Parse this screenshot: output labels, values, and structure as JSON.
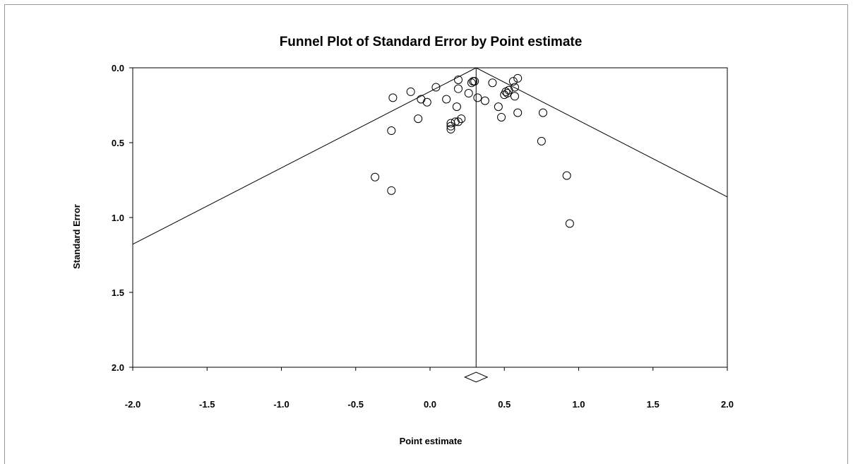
{
  "chart_data": {
    "type": "scatter",
    "title": "Funnel Plot of Standard Error by Point estimate",
    "xlabel": "Point estimate",
    "ylabel": "Standard Error",
    "xlim": [
      -2.0,
      2.0
    ],
    "ylim": [
      0.0,
      2.0
    ],
    "y_inverted": true,
    "x_ticks": [
      "-2.0",
      "-1.5",
      "-1.0",
      "-0.5",
      "0.0",
      "0.5",
      "1.0",
      "1.5",
      "2.0"
    ],
    "y_ticks": [
      "0.0",
      "0.5",
      "1.0",
      "1.5",
      "2.0"
    ],
    "grid": false,
    "combined_estimate": 0.31,
    "funnel_limits": "95% (estimate ± 1.96 × SE)",
    "points": [
      {
        "x": 0.29,
        "y": 0.09
      },
      {
        "x": 0.3,
        "y": 0.09
      },
      {
        "x": 0.28,
        "y": 0.1
      },
      {
        "x": 0.19,
        "y": 0.08
      },
      {
        "x": 0.42,
        "y": 0.1
      },
      {
        "x": 0.56,
        "y": 0.09
      },
      {
        "x": 0.59,
        "y": 0.07
      },
      {
        "x": 0.57,
        "y": 0.13
      },
      {
        "x": 0.04,
        "y": 0.13
      },
      {
        "x": 0.19,
        "y": 0.14
      },
      {
        "x": -0.13,
        "y": 0.16
      },
      {
        "x": 0.26,
        "y": 0.17
      },
      {
        "x": 0.51,
        "y": 0.16
      },
      {
        "x": 0.53,
        "y": 0.15
      },
      {
        "x": 0.52,
        "y": 0.17
      },
      {
        "x": 0.5,
        "y": 0.18
      },
      {
        "x": 0.57,
        "y": 0.19
      },
      {
        "x": -0.25,
        "y": 0.2
      },
      {
        "x": 0.32,
        "y": 0.2
      },
      {
        "x": -0.06,
        "y": 0.21
      },
      {
        "x": 0.11,
        "y": 0.21
      },
      {
        "x": -0.02,
        "y": 0.23
      },
      {
        "x": 0.37,
        "y": 0.22
      },
      {
        "x": 0.18,
        "y": 0.26
      },
      {
        "x": 0.46,
        "y": 0.26
      },
      {
        "x": 0.59,
        "y": 0.3
      },
      {
        "x": 0.76,
        "y": 0.3
      },
      {
        "x": 0.48,
        "y": 0.33
      },
      {
        "x": -0.08,
        "y": 0.34
      },
      {
        "x": 0.21,
        "y": 0.34
      },
      {
        "x": 0.17,
        "y": 0.36
      },
      {
        "x": 0.19,
        "y": 0.36
      },
      {
        "x": 0.14,
        "y": 0.37
      },
      {
        "x": 0.14,
        "y": 0.39
      },
      {
        "x": 0.14,
        "y": 0.41
      },
      {
        "x": -0.26,
        "y": 0.42
      },
      {
        "x": 0.75,
        "y": 0.49
      },
      {
        "x": -0.37,
        "y": 0.73
      },
      {
        "x": 0.92,
        "y": 0.72
      },
      {
        "x": -0.26,
        "y": 0.82
      },
      {
        "x": 0.94,
        "y": 1.04
      }
    ]
  }
}
